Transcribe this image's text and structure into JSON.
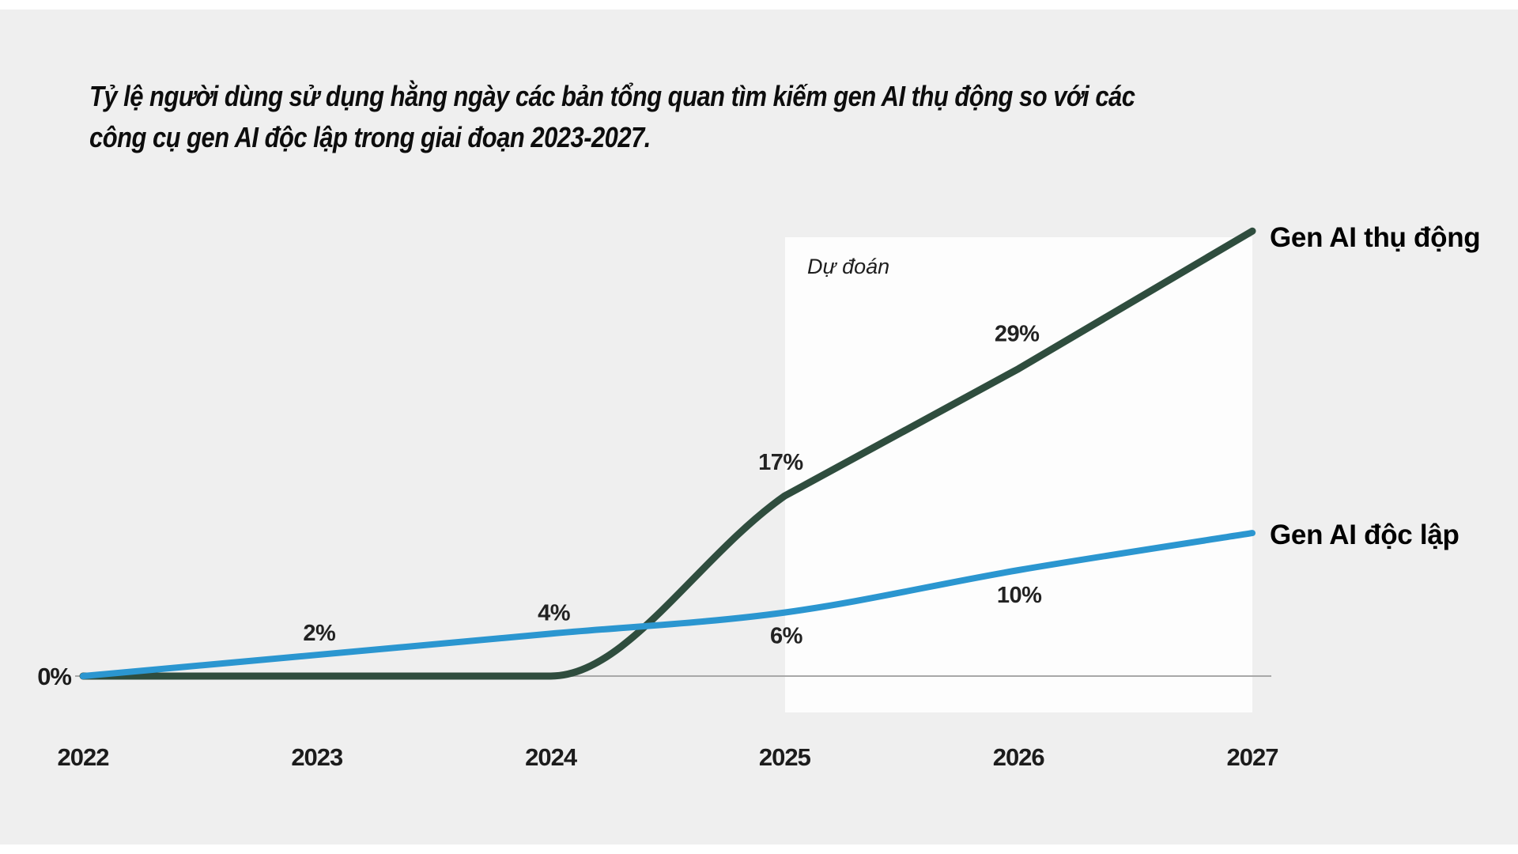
{
  "title": {
    "line1": "Tỷ lệ người dùng sử dụng hằng ngày các bản tổng quan tìm kiếm gen AI thụ động so với các",
    "line2": "công cụ gen AI độc lập trong giai đoạn 2023-2027."
  },
  "chart_data": {
    "type": "line",
    "x": [
      2022,
      2023,
      2024,
      2025,
      2026,
      2027
    ],
    "series": [
      {
        "name": "Gen AI thụ động",
        "color": "#2f4d3e",
        "values": [
          0,
          0,
          0,
          17,
          29,
          42
        ],
        "point_labels": {
          "2025": "17%",
          "2026": "29%"
        }
      },
      {
        "name": "Gen AI độc lập",
        "color": "#2b96d0",
        "values": [
          0,
          2,
          4,
          6,
          10,
          13.5
        ],
        "point_labels": {
          "2023": "2%",
          "2024": "4%",
          "2025": "6%",
          "2026": "10%"
        }
      }
    ],
    "y_zero_label": "0%",
    "forecast": {
      "label": "Dự đoán",
      "x_start": 2025,
      "x_end": 2027
    },
    "ylim": [
      0,
      45
    ],
    "grid": false,
    "legend_position": "right of line ends",
    "colors": {
      "background": "#efefef",
      "forecast_box": "#fdfdfd",
      "axis_line": "#a8a8a8"
    }
  }
}
